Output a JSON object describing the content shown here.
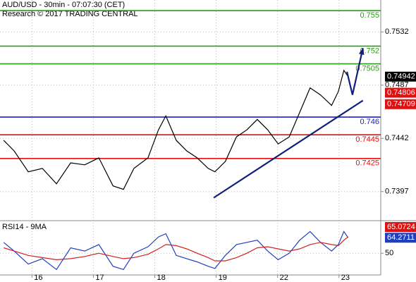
{
  "chart_data": [
    {
      "type": "line",
      "title": "AUD/USD - 30min - 07:07:30 (CET)",
      "subtitle": "Research © 2017 TRADING CENTRAL",
      "x": [
        0.54,
        0.71,
        0.94,
        1.17,
        1.4,
        1.63,
        1.86,
        2.09,
        2.32,
        2.49,
        2.66,
        2.89,
        3.06,
        3.18,
        3.35,
        3.52,
        3.69,
        3.87,
        3.98,
        4.15,
        4.33,
        4.5,
        4.67,
        4.84,
        5.01,
        5.19,
        5.36,
        5.53,
        5.7,
        5.88,
        5.99,
        6.08,
        6.15
      ],
      "series": [
        {
          "color": "#000000",
          "values": [
            0.74403,
            0.74314,
            0.74137,
            0.74166,
            0.74036,
            0.74213,
            0.74196,
            0.74255,
            0.74018,
            0.73989,
            0.74166,
            0.74255,
            0.74492,
            0.7461,
            0.74403,
            0.74314,
            0.74255,
            0.74166,
            0.74137,
            0.74225,
            0.74432,
            0.74492,
            0.7458,
            0.74492,
            0.74373,
            0.74432,
            0.74639,
            0.74847,
            0.74787,
            0.74699,
            0.74817,
            0.74995,
            0.74942
          ]
        }
      ],
      "xlim": [
        0.48,
        6.68
      ],
      "ylim": [
        0.7373,
        0.7559
      ],
      "yticks": [
        0.7397,
        0.7442,
        0.7487,
        0.7532
      ],
      "levels": [
        {
          "value": 0.755,
          "color": "#2e9a1b"
        },
        {
          "value": 0.752,
          "color": "#2e9a1b"
        },
        {
          "value": 0.7505,
          "color": "#2e9a1b"
        },
        {
          "value": 0.746,
          "color": "#1b1bd0"
        },
        {
          "value": 0.7445,
          "color": "#e01010"
        },
        {
          "value": 0.7425,
          "color": "#e01010"
        }
      ],
      "trendline": {
        "x": [
          3.96,
          6.39
        ],
        "y": [
          0.73918,
          0.7474
        ],
        "color": "#10207a"
      },
      "forecast_arrow": {
        "x": [
          6.13,
          6.22,
          6.39
        ],
        "y": [
          0.74983,
          0.74788,
          0.75184
        ],
        "color": "#10207a"
      },
      "last_values": [
        {
          "value": 0.74942,
          "color": "#000000"
        },
        {
          "value": 0.74806,
          "color": "#e01010"
        },
        {
          "value": 0.74709,
          "color": "#e01010"
        }
      ]
    },
    {
      "type": "line",
      "title": "RSI14 - 9MA",
      "x": [
        0.54,
        0.71,
        0.94,
        1.17,
        1.4,
        1.63,
        1.86,
        2.09,
        2.32,
        2.49,
        2.66,
        2.89,
        3.06,
        3.18,
        3.35,
        3.52,
        3.69,
        3.87,
        3.98,
        4.15,
        4.33,
        4.5,
        4.67,
        4.84,
        5.01,
        5.19,
        5.36,
        5.53,
        5.7,
        5.88,
        5.99,
        6.08,
        6.15
      ],
      "series": [
        {
          "color": "#1f3fbf",
          "values": [
            60,
            52,
            40,
            45,
            35,
            55,
            52,
            58,
            38,
            35,
            50,
            56,
            65,
            68,
            48,
            45,
            42,
            38,
            36,
            48,
            58,
            60,
            62,
            52,
            44,
            50,
            62,
            70,
            60,
            52,
            58,
            70,
            64.2711
          ]
        },
        {
          "color": "#d42020",
          "values": [
            55,
            52,
            48,
            46,
            44,
            45,
            47,
            50,
            47,
            45,
            46,
            49,
            54,
            58,
            57,
            54,
            50,
            46,
            43,
            43,
            46,
            50,
            55,
            56,
            54,
            52,
            54,
            58,
            60,
            58,
            57,
            62,
            65.0724
          ]
        }
      ],
      "xlim": [
        0.48,
        6.68
      ],
      "xticks": [
        {
          "value": 1,
          "label": "16"
        },
        {
          "value": 2,
          "label": "17"
        },
        {
          "value": 3,
          "label": "18"
        },
        {
          "value": 4,
          "label": "19"
        },
        {
          "value": 5,
          "label": "22"
        },
        {
          "value": 6,
          "label": "23"
        }
      ],
      "ylim": [
        30,
        80
      ],
      "yticks": [
        50
      ],
      "last_values": [
        {
          "value": 65.0724,
          "color": "#e01010"
        },
        {
          "value": 64.2711,
          "color": "#1f3fbf"
        }
      ]
    }
  ]
}
